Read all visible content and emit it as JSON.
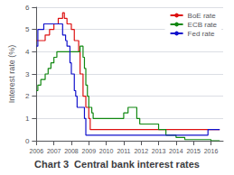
{
  "chart_data": {
    "type": "line",
    "title": "Chart 3  Central bank interest rates",
    "ylabel": "Interest rate (%)",
    "xlim": [
      2006,
      2016.7
    ],
    "ylim": [
      0,
      6
    ],
    "xticks": [
      2006,
      2007,
      2008,
      2009,
      2010,
      2011,
      2012,
      2013,
      2014,
      2015,
      2016
    ],
    "yticks": [
      0,
      1,
      2,
      3,
      4,
      5,
      6
    ],
    "grid": true,
    "legend": "upper right",
    "series": [
      {
        "name": "BoE rate",
        "color": "#dd1111",
        "x": [
          2006.0,
          2006.5,
          2006.5,
          2006.75,
          2006.75,
          2007.0,
          2007.0,
          2007.25,
          2007.25,
          2007.5,
          2007.5,
          2007.6,
          2007.6,
          2007.75,
          2007.75,
          2008.0,
          2008.0,
          2008.17,
          2008.17,
          2008.42,
          2008.42,
          2008.5,
          2008.5,
          2008.67,
          2008.67,
          2008.83,
          2008.83,
          2009.0,
          2009.0,
          2009.08,
          2009.08,
          2009.17,
          2009.17,
          2016.5
        ],
        "values": [
          4.5,
          4.5,
          4.75,
          4.75,
          5.0,
          5.0,
          5.25,
          5.25,
          5.5,
          5.5,
          5.75,
          5.75,
          5.5,
          5.5,
          5.25,
          5.25,
          5.0,
          5.0,
          4.5,
          4.5,
          4.0,
          4.0,
          3.0,
          3.0,
          2.0,
          2.0,
          1.5,
          1.5,
          1.0,
          1.0,
          0.5,
          0.5,
          0.5,
          0.5
        ]
      },
      {
        "name": "ECB rate",
        "color": "#118811",
        "x": [
          2006.0,
          2006.08,
          2006.08,
          2006.25,
          2006.25,
          2006.5,
          2006.5,
          2006.67,
          2006.67,
          2006.83,
          2006.83,
          2007.0,
          2007.0,
          2007.17,
          2007.17,
          2007.42,
          2007.42,
          2008.5,
          2008.5,
          2008.67,
          2008.67,
          2008.75,
          2008.75,
          2008.83,
          2008.83,
          2008.92,
          2008.92,
          2009.0,
          2009.0,
          2009.17,
          2009.17,
          2009.25,
          2009.25,
          2009.42,
          2009.42,
          2011.0,
          2011.0,
          2011.25,
          2011.25,
          2011.5,
          2011.5,
          2011.75,
          2011.75,
          2011.92,
          2011.92,
          2012.5,
          2012.5,
          2013.0,
          2013.0,
          2013.42,
          2013.42,
          2014.0,
          2014.0,
          2014.5,
          2014.5,
          2016.0,
          2016.0,
          2016.5
        ],
        "values": [
          2.25,
          2.25,
          2.5,
          2.5,
          2.75,
          2.75,
          3.0,
          3.0,
          3.25,
          3.25,
          3.5,
          3.5,
          3.75,
          3.75,
          4.0,
          4.0,
          4.0,
          4.0,
          4.25,
          4.25,
          3.75,
          3.75,
          3.25,
          3.25,
          2.5,
          2.5,
          2.0,
          2.0,
          1.5,
          1.5,
          1.25,
          1.25,
          1.0,
          1.0,
          1.0,
          1.0,
          1.25,
          1.25,
          1.5,
          1.5,
          1.5,
          1.5,
          1.0,
          1.0,
          0.75,
          0.75,
          0.75,
          0.75,
          0.5,
          0.5,
          0.25,
          0.25,
          0.15,
          0.15,
          0.05,
          0.05,
          0.0,
          0.0
        ]
      },
      {
        "name": "Fed rate",
        "color": "#1111cc",
        "x": [
          2006.0,
          2006.0,
          2006.08,
          2006.08,
          2006.42,
          2006.42,
          2006.67,
          2006.67,
          2007.5,
          2007.5,
          2007.67,
          2007.67,
          2007.75,
          2007.75,
          2007.92,
          2007.92,
          2008.0,
          2008.0,
          2008.17,
          2008.17,
          2008.25,
          2008.25,
          2008.33,
          2008.33,
          2008.75,
          2008.75,
          2008.83,
          2008.83,
          2008.92,
          2008.92,
          2015.83,
          2015.83,
          2016.5
        ],
        "values": [
          4.25,
          4.25,
          4.25,
          5.0,
          5.0,
          5.25,
          5.25,
          5.25,
          5.25,
          4.75,
          4.75,
          4.5,
          4.5,
          4.25,
          4.25,
          3.5,
          3.5,
          3.0,
          3.0,
          2.25,
          2.25,
          2.0,
          2.0,
          1.5,
          1.5,
          1.0,
          1.0,
          0.25,
          0.25,
          0.25,
          0.25,
          0.5,
          0.5
        ]
      }
    ]
  }
}
